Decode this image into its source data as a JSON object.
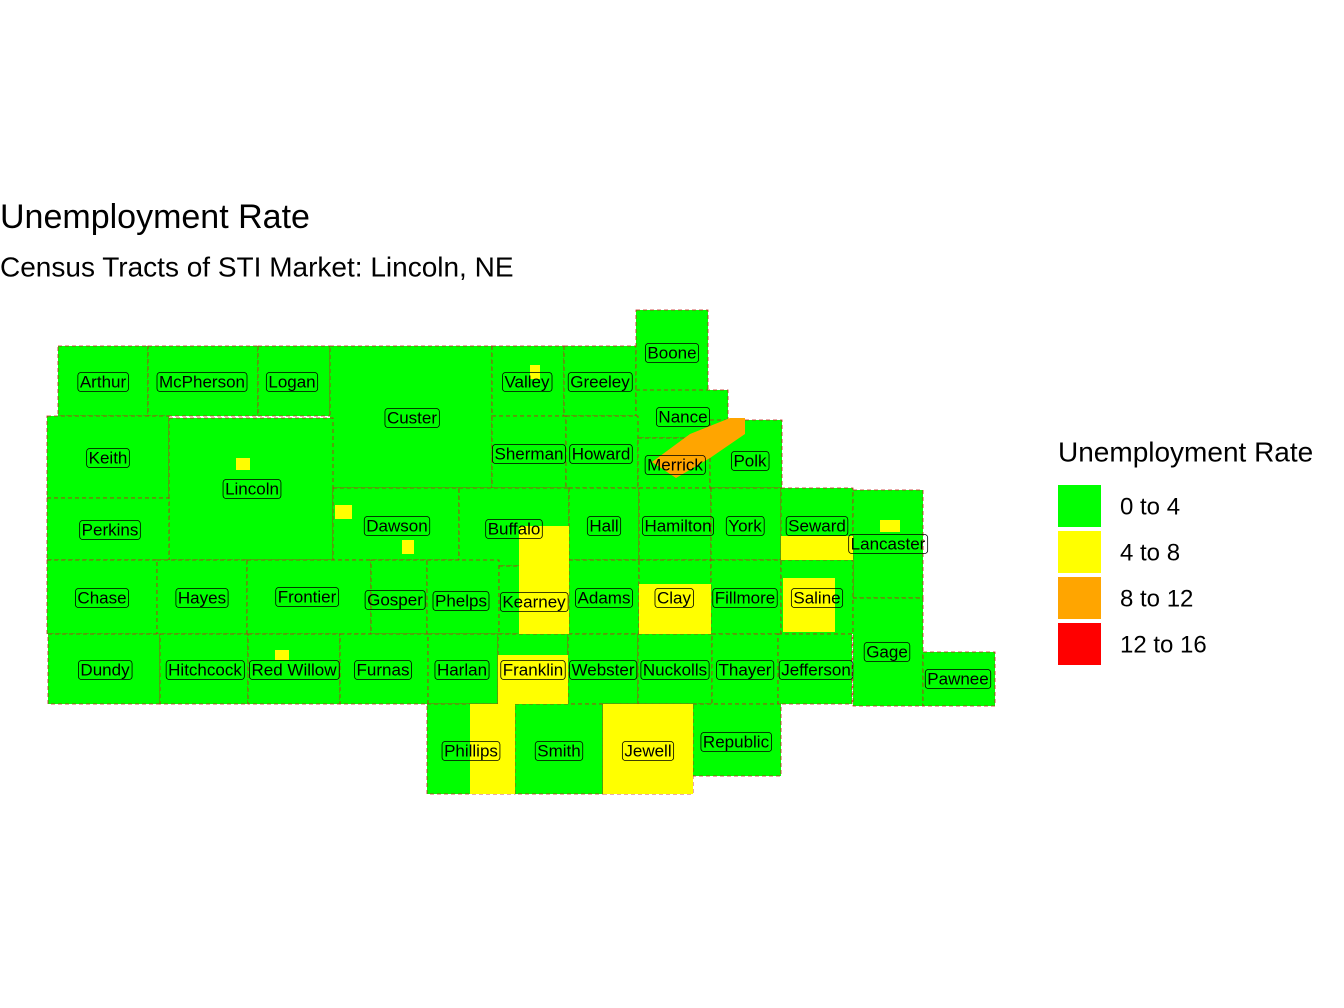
{
  "title": "Unemployment Rate",
  "subtitle": "Census Tracts of STI Market: Lincoln, NE",
  "legend": {
    "title": "Unemployment Rate",
    "items": [
      {
        "label": "0 to 4",
        "color": "#00ff00"
      },
      {
        "label": "4 to 8",
        "color": "#ffff00"
      },
      {
        "label": "8 to 12",
        "color": "#ffa500"
      },
      {
        "label": "12 to 16",
        "color": "#ff0000"
      }
    ]
  },
  "counties": [
    "Arthur",
    "McPherson",
    "Logan",
    "Custer",
    "Valley",
    "Greeley",
    "Boone",
    "Nance",
    "Keith",
    "Lincoln",
    "Sherman",
    "Howard",
    "Merrick",
    "Polk",
    "Perkins",
    "Dawson",
    "Buffalo",
    "Hall",
    "Hamilton",
    "York",
    "Seward",
    "Lancaster",
    "Chase",
    "Hayes",
    "Frontier",
    "Gosper",
    "Phelps",
    "Kearney",
    "Adams",
    "Clay",
    "Fillmore",
    "Saline",
    "Gage",
    "Dundy",
    "Hitchcock",
    "Red Willow",
    "Furnas",
    "Harlan",
    "Franklin",
    "Webster",
    "Nuckolls",
    "Thayer",
    "Jefferson",
    "Pawnee",
    "Phillips",
    "Smith",
    "Jewell",
    "Republic"
  ]
}
